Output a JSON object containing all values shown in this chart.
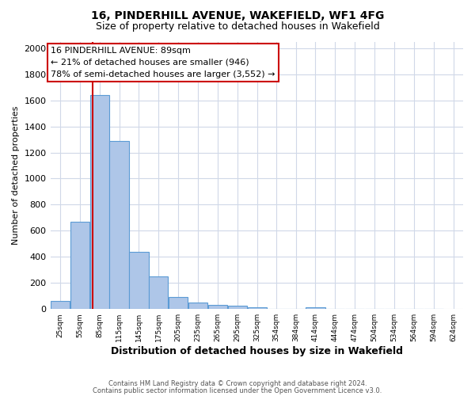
{
  "title1": "16, PINDERHILL AVENUE, WAKEFIELD, WF1 4FG",
  "title2": "Size of property relative to detached houses in Wakefield",
  "xlabel": "Distribution of detached houses by size in Wakefield",
  "ylabel": "Number of detached properties",
  "footer1": "Contains HM Land Registry data © Crown copyright and database right 2024.",
  "footer2": "Contains public sector information licensed under the Open Government Licence v3.0.",
  "annotation_title": "16 PINDERHILL AVENUE: 89sqm",
  "annotation_line1": "← 21% of detached houses are smaller (946)",
  "annotation_line2": "78% of semi-detached houses are larger (3,552) →",
  "property_size": 89,
  "bins": [
    25,
    55,
    85,
    115,
    145,
    175,
    205,
    235,
    265,
    295,
    325,
    354,
    384,
    414,
    444,
    474,
    504,
    534,
    564,
    594,
    624
  ],
  "values": [
    60,
    670,
    1640,
    1290,
    440,
    248,
    90,
    47,
    30,
    23,
    13,
    0,
    0,
    15,
    0,
    0,
    0,
    0,
    0,
    0
  ],
  "bar_color": "#aec6e8",
  "bar_edge_color": "#5b9bd5",
  "grid_color": "#d0d8e8",
  "vline_color": "#cc0000",
  "annotation_box_edgecolor": "#cc0000",
  "ylim_max": 2050,
  "yticks": [
    0,
    200,
    400,
    600,
    800,
    1000,
    1200,
    1400,
    1600,
    1800,
    2000
  ],
  "tick_labels": [
    "25sqm",
    "55sqm",
    "85sqm",
    "115sqm",
    "145sqm",
    "175sqm",
    "205sqm",
    "235sqm",
    "265sqm",
    "295sqm",
    "325sqm",
    "354sqm",
    "384sqm",
    "414sqm",
    "444sqm",
    "474sqm",
    "504sqm",
    "534sqm",
    "564sqm",
    "594sqm",
    "624sqm"
  ],
  "bg_color": "#ffffff",
  "title1_fontsize": 10,
  "title2_fontsize": 9,
  "ylabel_fontsize": 8,
  "xlabel_fontsize": 9,
  "annotation_fontsize": 8,
  "ytick_fontsize": 8,
  "xtick_fontsize": 6.5,
  "footer_fontsize": 6
}
